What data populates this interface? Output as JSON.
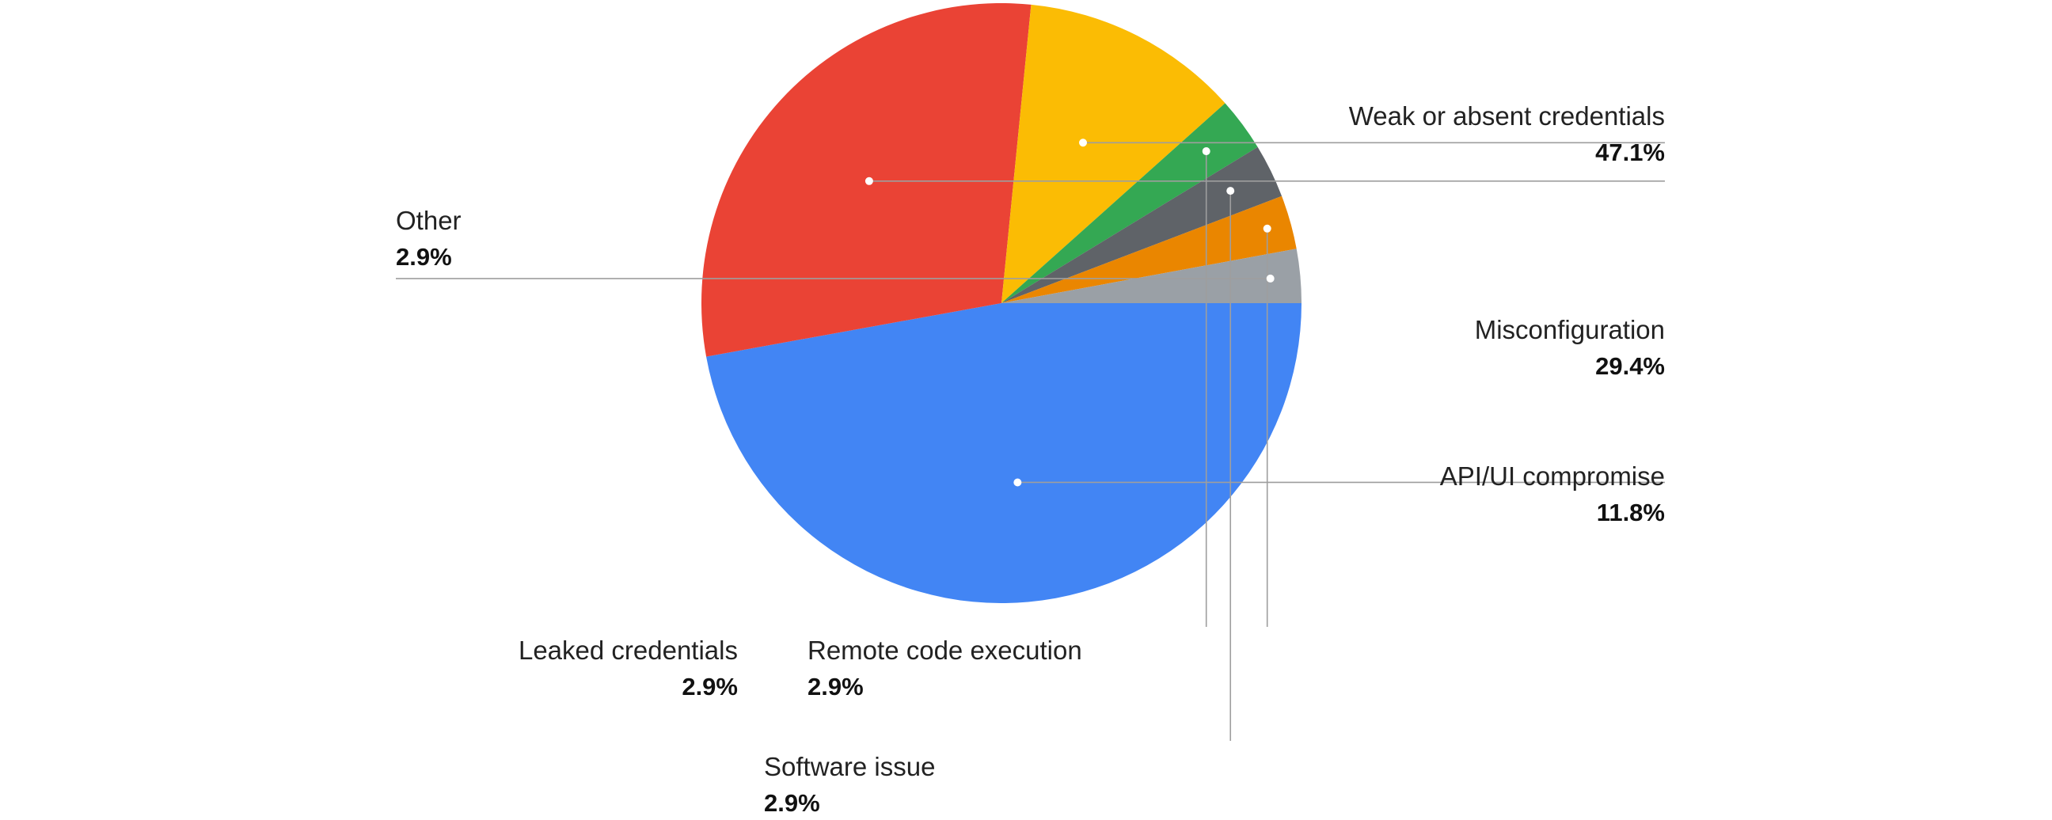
{
  "chart_data": {
    "type": "pie",
    "title": "",
    "slices": [
      {
        "label": "Weak or absent credentials",
        "value": 47.1,
        "display": "47.1%",
        "color": "#4285F4"
      },
      {
        "label": "Misconfiguration",
        "value": 29.4,
        "display": "29.4%",
        "color": "#EA4335"
      },
      {
        "label": "API/UI compromise",
        "value": 11.8,
        "display": "11.8%",
        "color": "#FBBC04"
      },
      {
        "label": "Remote code execution",
        "value": 2.9,
        "display": "2.9%",
        "color": "#34A853"
      },
      {
        "label": "Software issue",
        "value": 2.9,
        "display": "2.9%",
        "color": "#5F6368"
      },
      {
        "label": "Leaked credentials",
        "value": 2.9,
        "display": "2.9%",
        "color": "#EA8600"
      },
      {
        "label": "Other",
        "value": 2.9,
        "display": "2.9%",
        "color": "#9AA0A6"
      }
    ],
    "start_direction": "3 o'clock",
    "direction": "clockwise",
    "legend": "callout labels with leader lines"
  }
}
